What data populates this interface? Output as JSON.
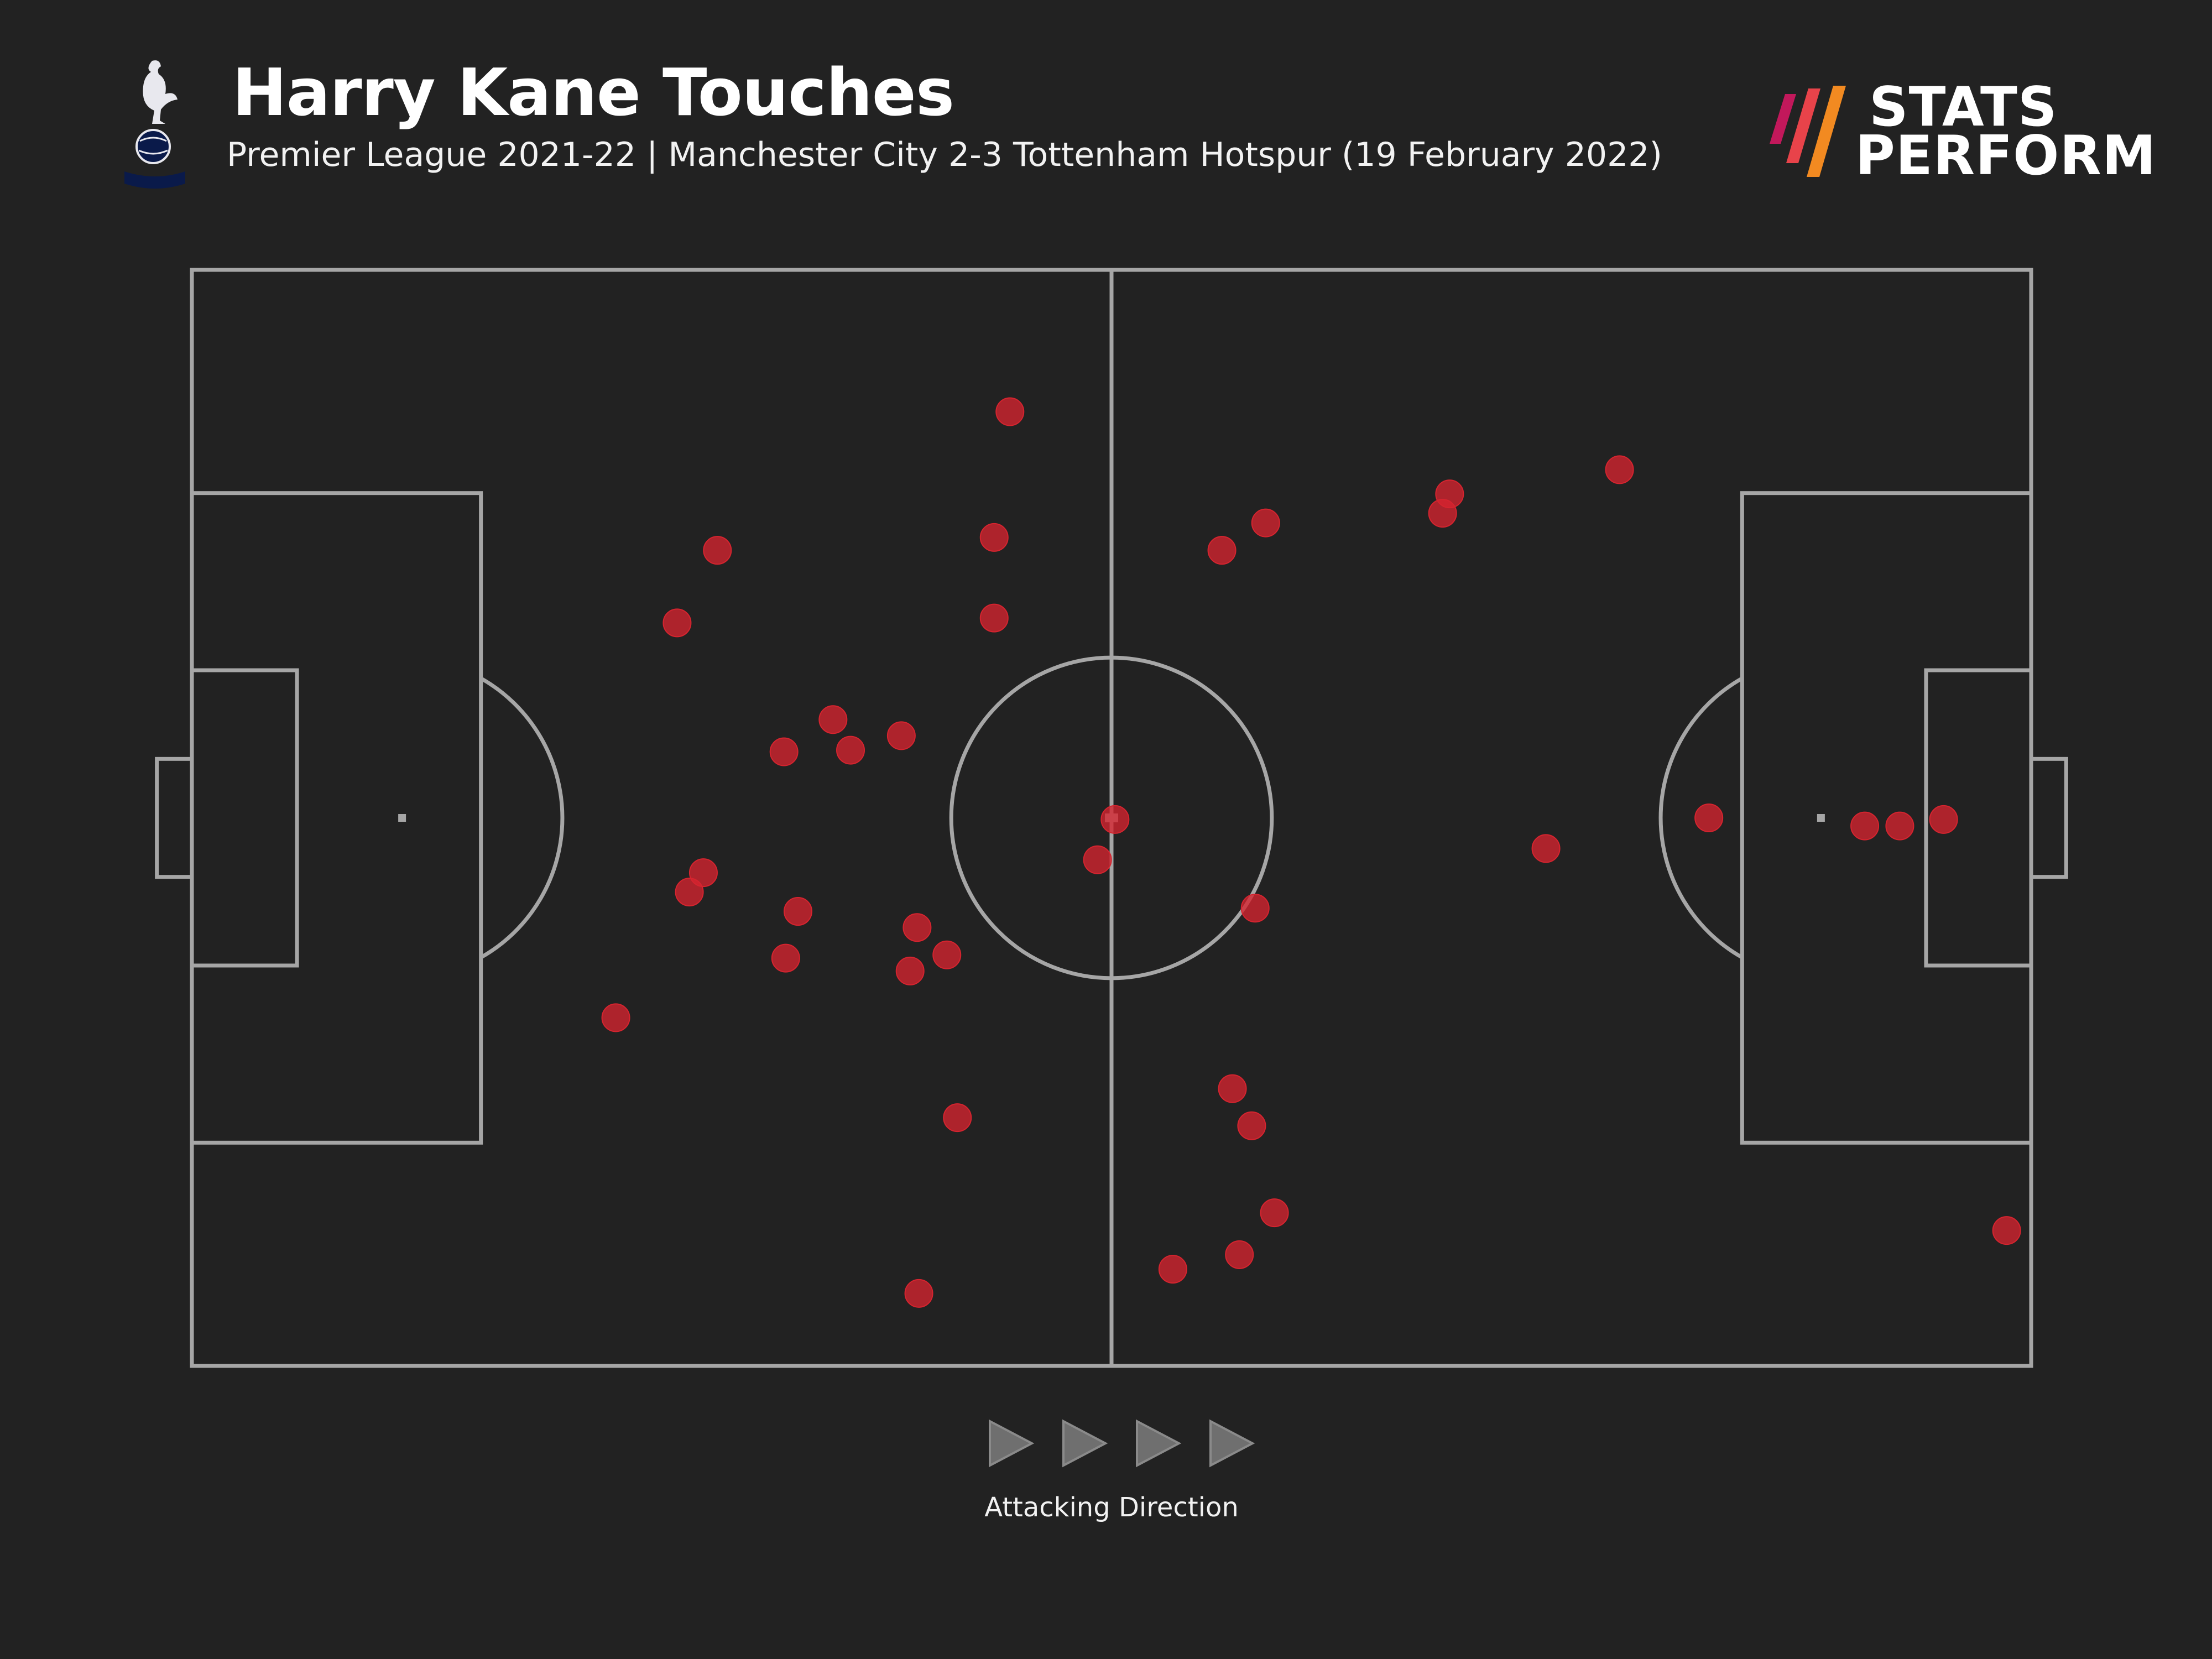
{
  "header": {
    "title": "Harry Kane Touches",
    "subtitle": "Premier League 2021-22 | Manchester City 2-3 Tottenham Hotspur (19 February 2022)",
    "brand_line1": "STATS",
    "brand_line2": "PERFORM",
    "crest_icon": "tottenham-crest-icon",
    "brand_icon": "stats-perform-logo-icon"
  },
  "colors": {
    "background": "#222222",
    "pitch_lines": "#a6a6a6",
    "touch_marker": "#d6242f",
    "arrow": "#6f6f6f",
    "text": "#ffffff"
  },
  "footer": {
    "direction_label": "Attacking Direction",
    "arrow_icon": "play-triangle-icon",
    "arrow_count": 4
  },
  "chart_data": {
    "type": "scatter",
    "title": "Harry Kane Touches",
    "subtitle": "Premier League 2021-22 | Manchester City 2-3 Tottenham Hotspur (19 February 2022)",
    "xlabel": "",
    "ylabel": "",
    "xlim": [
      0,
      105
    ],
    "ylim": [
      0,
      68
    ],
    "attacking_direction": "left-to-right",
    "series": [
      {
        "points": [
          {
            "x": 46.7,
            "y": 59.2
          },
          {
            "x": 45.8,
            "y": 51.4
          },
          {
            "x": 45.8,
            "y": 46.4
          },
          {
            "x": 30.0,
            "y": 50.6
          },
          {
            "x": 27.7,
            "y": 46.1
          },
          {
            "x": 36.6,
            "y": 40.1
          },
          {
            "x": 40.5,
            "y": 39.1
          },
          {
            "x": 37.6,
            "y": 38.2
          },
          {
            "x": 33.8,
            "y": 38.1
          },
          {
            "x": 29.2,
            "y": 30.6
          },
          {
            "x": 28.4,
            "y": 29.4
          },
          {
            "x": 34.6,
            "y": 28.2
          },
          {
            "x": 33.9,
            "y": 25.3
          },
          {
            "x": 41.4,
            "y": 27.2
          },
          {
            "x": 43.1,
            "y": 25.5
          },
          {
            "x": 41.0,
            "y": 24.5
          },
          {
            "x": 24.2,
            "y": 21.6
          },
          {
            "x": 43.7,
            "y": 15.4
          },
          {
            "x": 41.5,
            "y": 4.5
          },
          {
            "x": 52.7,
            "y": 33.9
          },
          {
            "x": 51.7,
            "y": 31.4
          },
          {
            "x": 60.7,
            "y": 28.4
          },
          {
            "x": 58.8,
            "y": 50.6
          },
          {
            "x": 61.3,
            "y": 52.3
          },
          {
            "x": 71.4,
            "y": 52.9
          },
          {
            "x": 71.8,
            "y": 54.1
          },
          {
            "x": 81.5,
            "y": 55.6
          },
          {
            "x": 77.3,
            "y": 32.1
          },
          {
            "x": 86.6,
            "y": 34.0
          },
          {
            "x": 95.5,
            "y": 33.5
          },
          {
            "x": 97.5,
            "y": 33.5
          },
          {
            "x": 100.0,
            "y": 33.9
          },
          {
            "x": 59.4,
            "y": 17.2
          },
          {
            "x": 60.5,
            "y": 14.9
          },
          {
            "x": 61.8,
            "y": 9.5
          },
          {
            "x": 59.8,
            "y": 6.9
          },
          {
            "x": 56.0,
            "y": 6.0
          },
          {
            "x": 103.6,
            "y": 8.4
          }
        ]
      }
    ]
  }
}
